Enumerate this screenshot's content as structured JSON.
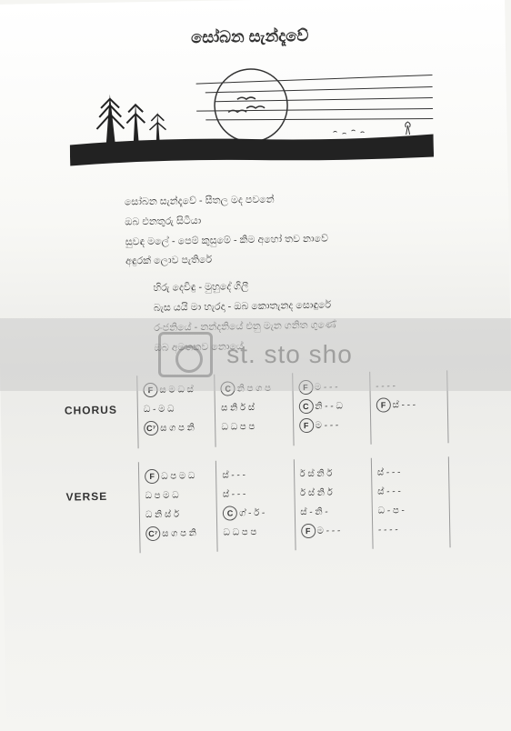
{
  "title": "සෝබන සැන්දෑවේ",
  "lyrics": {
    "block1": [
      "සෝබන සැන්දෑවේ - සීතල මද පවනේ",
      "ඔබ එනතුරු සිටියා",
      "සුවඳ මලේ - පෙම් කුසුමේ - කිම අහෝ තව නාවේ",
      "අඳුරක් ලොව පැතිරේ"
    ],
    "block2": [
      "හිරු දෙවිඳු - මුහුදේ ගිලී",
      "බැස යයි මා හැරදා - ඔබ කොතැනද සොඳුරේ",
      "රංජනියේ - නන්දනියේ එනු මැන ගනිත ගුණේ",
      "ඔබ අමතකව නොයේ"
    ]
  },
  "watermark": "st. sto     sho",
  "sections": [
    {
      "label": "CHORUS",
      "cols": [
        [
          {
            "chord": "F",
            "notes": "ස ම ධ ස්"
          },
          {
            "chord": "",
            "notes": "ධ - ම ධ"
          },
          {
            "chord": "C⁷",
            "notes": "ස ග ප නි"
          }
        ],
        [
          {
            "chord": "C",
            "notes": "නි ප ග ප"
          },
          {
            "chord": "",
            "notes": "ස නි ර් ස්"
          },
          {
            "chord": "",
            "notes": "ධ ධ ප ප"
          }
        ],
        [
          {
            "chord": "F",
            "notes": "ම - - -"
          },
          {
            "chord": "C",
            "notes": "නි - - ධ"
          },
          {
            "chord": "F",
            "notes": "ම - - -"
          }
        ],
        [
          {
            "chord": "",
            "notes": "- - - -"
          },
          {
            "chord": "F",
            "notes": "ස් - - -"
          },
          {
            "chord": "",
            "notes": ""
          }
        ]
      ]
    },
    {
      "label": "VERSE",
      "cols": [
        [
          {
            "chord": "F",
            "notes": "ධ ප ම ධ"
          },
          {
            "chord": "",
            "notes": "ධ ප ම ධ"
          },
          {
            "chord": "",
            "notes": "ධ නි ස් ර්"
          },
          {
            "chord": "C⁷",
            "notes": "ස ග ප නි"
          }
        ],
        [
          {
            "chord": "",
            "notes": "ස් - - -"
          },
          {
            "chord": "",
            "notes": "ස් - - -"
          },
          {
            "chord": "C",
            "notes": "ග් - ර් -"
          },
          {
            "chord": "",
            "notes": "ධ ධ ප ප"
          }
        ],
        [
          {
            "chord": "",
            "notes": "ර් ස් නි ර්"
          },
          {
            "chord": "",
            "notes": "ර් ස් නි ර්"
          },
          {
            "chord": "",
            "notes": "ස් - නි -"
          },
          {
            "chord": "F",
            "notes": "ම - - -"
          }
        ],
        [
          {
            "chord": "",
            "notes": "ස් - - -"
          },
          {
            "chord": "",
            "notes": "ස් - - -"
          },
          {
            "chord": "",
            "notes": "ධ - ප -"
          },
          {
            "chord": "",
            "notes": "- - - -"
          }
        ]
      ]
    }
  ]
}
